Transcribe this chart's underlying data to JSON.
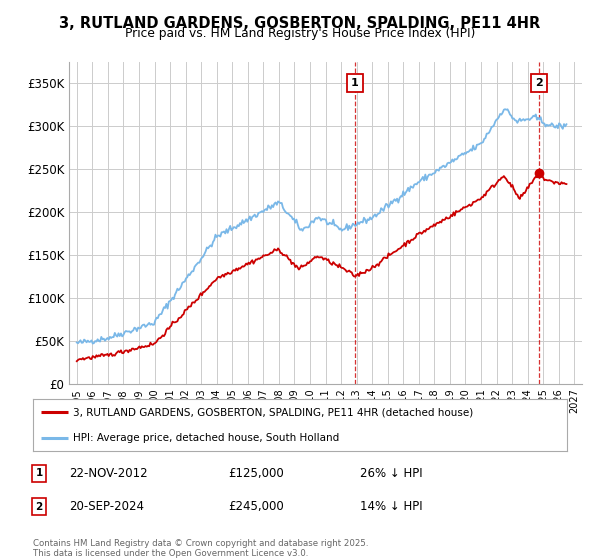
{
  "title": "3, RUTLAND GARDENS, GOSBERTON, SPALDING, PE11 4HR",
  "subtitle": "Price paid vs. HM Land Registry's House Price Index (HPI)",
  "ylabel_ticks": [
    "£0",
    "£50K",
    "£100K",
    "£150K",
    "£200K",
    "£250K",
    "£300K",
    "£350K"
  ],
  "ytick_values": [
    0,
    50000,
    100000,
    150000,
    200000,
    250000,
    300000,
    350000
  ],
  "ylim": [
    0,
    375000
  ],
  "xlim_start": 1994.5,
  "xlim_end": 2027.5,
  "hpi_color": "#7ab8e8",
  "price_color": "#cc0000",
  "marker1_x": 2012.9,
  "marker1_y_price": 125000,
  "marker1_label": "1",
  "marker2_x": 2024.72,
  "marker2_y_price": 245000,
  "marker2_label": "2",
  "annotation1_date": "22-NOV-2012",
  "annotation1_price": "£125,000",
  "annotation1_hpi": "26% ↓ HPI",
  "annotation2_date": "20-SEP-2024",
  "annotation2_price": "£245,000",
  "annotation2_hpi": "14% ↓ HPI",
  "legend_label1": "3, RUTLAND GARDENS, GOSBERTON, SPALDING, PE11 4HR (detached house)",
  "legend_label2": "HPI: Average price, detached house, South Holland",
  "footer": "Contains HM Land Registry data © Crown copyright and database right 2025.\nThis data is licensed under the Open Government Licence v3.0.",
  "background_color": "#ffffff",
  "grid_color": "#cccccc"
}
